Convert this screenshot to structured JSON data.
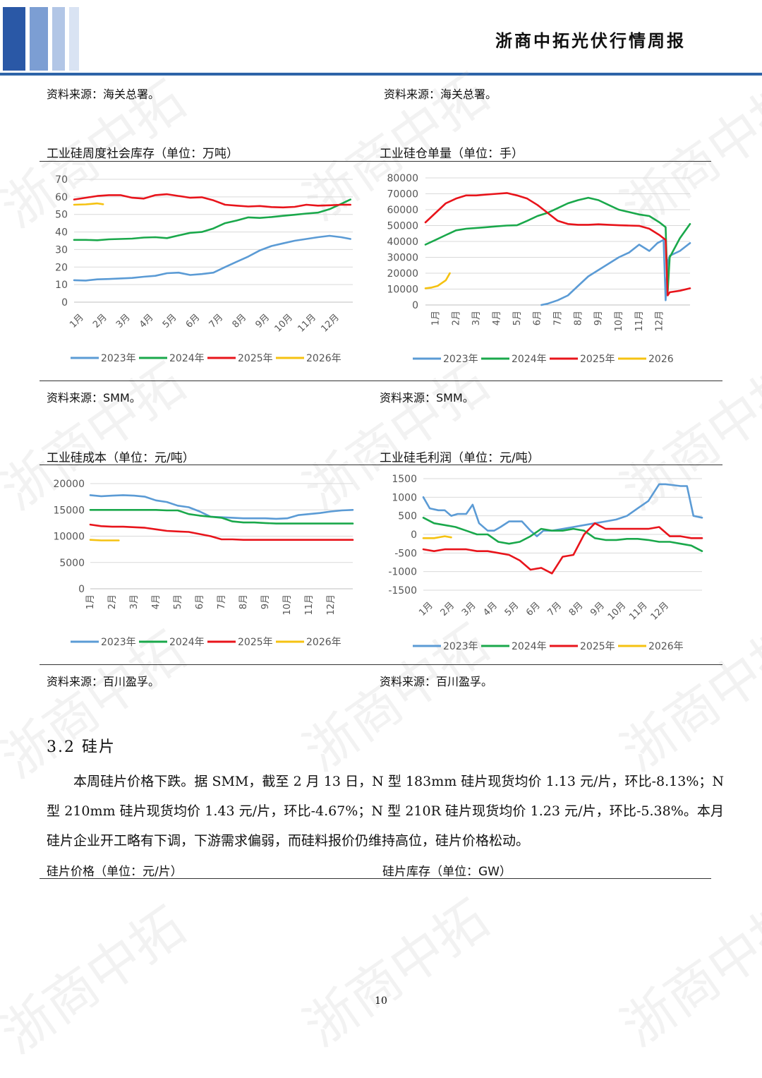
{
  "header": {
    "title": "浙商中拓光伏行情周报",
    "bar_colors": [
      "#2a58a6",
      "#7c9ed3",
      "#b2c6e6",
      "#d9e3f3"
    ]
  },
  "top_sources": {
    "left": "资料来源：海关总署。",
    "right": "资料来源：海关总署。"
  },
  "watermark": "浙商中拓",
  "series_colors": {
    "2023": "#5b9bd5",
    "2024": "#1aa84b",
    "2025": "#e8141b",
    "2026": "#f5c211"
  },
  "chart_data": [
    {
      "id": "inventory",
      "type": "line",
      "title": "工业硅周度社会库存（单位：万吨）",
      "ylim": [
        0,
        70
      ],
      "yticks": [
        "70",
        "60",
        "50",
        "40",
        "30",
        "20",
        "10",
        "0"
      ],
      "categories": [
        "1月",
        "2月",
        "3月",
        "4月",
        "5月",
        "6月",
        "7月",
        "8月",
        "9月",
        "10月",
        "11月",
        "12月"
      ],
      "legend": [
        "2023年",
        "2024年",
        "2025年",
        "2026年"
      ],
      "source": "资料来源：SMM。",
      "series": [
        {
          "name": "2023年",
          "key": "2023",
          "x": [
            0,
            0.5,
            1,
            1.5,
            2,
            2.5,
            3,
            3.5,
            4,
            4.5,
            5,
            5.5,
            6,
            6.5,
            7,
            7.5,
            8,
            8.5,
            9,
            9.5,
            10,
            10.5,
            11,
            11.5,
            11.9
          ],
          "values": [
            12.5,
            12.3,
            13,
            13.2,
            13.5,
            13.8,
            14.5,
            15,
            16.5,
            16.8,
            15.5,
            16,
            16.8,
            20,
            23,
            26,
            29.5,
            32,
            33.5,
            35,
            36,
            37,
            37.8,
            37,
            36
          ]
        },
        {
          "name": "2024年",
          "key": "2024",
          "x": [
            0,
            0.5,
            1,
            1.5,
            2,
            2.5,
            3,
            3.5,
            4,
            4.5,
            5,
            5.5,
            6,
            6.5,
            7,
            7.5,
            8,
            8.5,
            9,
            9.5,
            10,
            10.5,
            11,
            11.5,
            11.9
          ],
          "values": [
            35.5,
            35.5,
            35.3,
            35.8,
            36,
            36.2,
            36.8,
            37,
            36.5,
            38,
            39.5,
            40,
            42,
            45,
            46.5,
            48.3,
            48,
            48.5,
            49.2,
            49.8,
            50.5,
            51,
            53,
            56,
            58.5
          ]
        },
        {
          "name": "2025年",
          "key": "2025",
          "x": [
            0,
            0.5,
            1,
            1.5,
            2,
            2.5,
            3,
            3.5,
            4,
            4.5,
            5,
            5.5,
            6,
            6.5,
            7,
            7.5,
            8,
            8.5,
            9,
            9.5,
            10,
            10.5,
            11,
            11.5,
            11.9
          ],
          "values": [
            58.5,
            59.5,
            60.5,
            61,
            61,
            59.5,
            59,
            61,
            61.5,
            60.5,
            59.5,
            59.8,
            58,
            55.5,
            55,
            54.5,
            54.8,
            54.2,
            54,
            54.3,
            55.5,
            55,
            55.2,
            55.5,
            55.5
          ]
        },
        {
          "name": "2026年",
          "key": "2026",
          "x": [
            0,
            0.5,
            1,
            1.25
          ],
          "values": [
            55.5,
            55.7,
            56.3,
            55.8
          ]
        }
      ]
    },
    {
      "id": "warehouse",
      "type": "line",
      "title": "工业硅仓单量（单位：手）",
      "ylim": [
        0,
        80000
      ],
      "yticks": [
        "80000",
        "70000",
        "60000",
        "50000",
        "40000",
        "30000",
        "20000",
        "10000",
        "0"
      ],
      "categories": [
        "1月",
        "2月",
        "3月",
        "4月",
        "5月",
        "6月",
        "7月",
        "8月",
        "9月",
        "10月",
        "11月",
        "12月"
      ],
      "legend": [
        "2023年",
        "2024年",
        "2025年",
        "2026"
      ],
      "source": "资料来源：SMM。",
      "series": [
        {
          "name": "2023年",
          "key": "2023",
          "x": [
            5.7,
            6,
            6.5,
            7,
            7.5,
            8,
            8.5,
            9,
            9.5,
            10,
            10.5,
            11,
            11.4,
            11.7,
            11.8,
            11.9,
            12,
            12.5,
            13
          ],
          "values": [
            0,
            800,
            3000,
            6000,
            12000,
            18000,
            22000,
            26000,
            30000,
            33000,
            38000,
            34000,
            39000,
            41000,
            3000,
            27000,
            31000,
            34000,
            39000
          ]
        },
        {
          "name": "2024年",
          "key": "2024",
          "x": [
            0,
            0.5,
            1,
            1.5,
            2,
            2.5,
            3,
            3.5,
            4,
            4.5,
            5,
            5.5,
            6,
            6.5,
            7,
            7.5,
            8,
            8.5,
            9,
            9.5,
            10,
            10.5,
            11,
            11.5,
            11.8,
            11.9,
            12,
            12.5,
            13
          ],
          "values": [
            38000,
            41000,
            44000,
            47000,
            48000,
            48500,
            49000,
            49500,
            50000,
            50200,
            53000,
            56000,
            58000,
            61000,
            64000,
            66000,
            67500,
            66000,
            63000,
            60000,
            58500,
            57000,
            56000,
            52000,
            49000,
            8000,
            30000,
            42000,
            51000
          ]
        },
        {
          "name": "2025年",
          "key": "2025",
          "x": [
            0,
            0.5,
            1,
            1.5,
            2,
            2.5,
            3,
            3.5,
            4,
            4.5,
            5,
            5.5,
            6,
            6.5,
            7,
            7.5,
            8,
            8.5,
            9,
            9.5,
            10,
            10.5,
            11,
            11.5,
            11.8,
            11.9,
            12,
            12.5,
            13
          ],
          "values": [
            52000,
            58000,
            64000,
            67000,
            69000,
            69000,
            69500,
            70000,
            70500,
            69000,
            67000,
            63000,
            58000,
            53000,
            51000,
            50500,
            50500,
            50800,
            50500,
            50200,
            50000,
            49800,
            48000,
            44000,
            41000,
            6000,
            8000,
            9000,
            10500
          ]
        },
        {
          "name": "2026",
          "key": "2026",
          "x": [
            0,
            0.3,
            0.6,
            1,
            1.2
          ],
          "values": [
            10500,
            11000,
            12000,
            15500,
            20000
          ]
        }
      ]
    },
    {
      "id": "cost",
      "type": "line",
      "title": "工业硅成本（单位：元/吨）",
      "ylim": [
        0,
        20000
      ],
      "yticks": [
        "20000",
        "15000",
        "10000",
        "5000",
        "0"
      ],
      "categories": [
        "1月",
        "2月",
        "3月",
        "4月",
        "5月",
        "6月",
        "7月",
        "8月",
        "9月",
        "10月",
        "11月",
        "12月"
      ],
      "legend": [
        "2023年",
        "2024年",
        "2025年",
        "2026年"
      ],
      "source": "资料来源：百川盈孚。",
      "series": [
        {
          "name": "2023年",
          "key": "2023",
          "x": [
            0,
            0.5,
            1,
            1.5,
            2,
            2.5,
            3,
            3.5,
            4,
            4.5,
            5,
            5.5,
            6,
            6.5,
            7,
            7.5,
            8,
            8.5,
            9,
            9.5,
            10,
            10.5,
            11,
            11.5,
            12
          ],
          "values": [
            17800,
            17600,
            17700,
            17800,
            17700,
            17500,
            16800,
            16500,
            15800,
            15500,
            14700,
            13700,
            13600,
            13500,
            13400,
            13400,
            13400,
            13300,
            13400,
            14000,
            14200,
            14400,
            14700,
            14900,
            15000
          ]
        },
        {
          "name": "2024年",
          "key": "2024",
          "x": [
            0,
            0.5,
            1,
            1.5,
            2,
            2.5,
            3,
            3.5,
            4,
            4.5,
            5,
            5.5,
            6,
            6.5,
            7,
            7.5,
            8,
            8.5,
            9,
            9.5,
            10,
            10.5,
            11,
            11.5,
            12
          ],
          "values": [
            15000,
            15000,
            15000,
            15000,
            15000,
            15000,
            15000,
            14900,
            14900,
            14200,
            13900,
            13700,
            13500,
            12800,
            12600,
            12600,
            12500,
            12400,
            12400,
            12400,
            12400,
            12400,
            12400,
            12400,
            12400
          ]
        },
        {
          "name": "2025年",
          "key": "2025",
          "x": [
            0,
            0.5,
            1,
            1.5,
            2,
            2.5,
            3,
            3.5,
            4,
            4.5,
            5,
            5.5,
            6,
            6.5,
            7,
            7.5,
            8,
            8.5,
            9,
            9.5,
            10,
            10.5,
            11,
            11.5,
            12
          ],
          "values": [
            12200,
            11900,
            11800,
            11800,
            11700,
            11600,
            11300,
            11000,
            10900,
            10800,
            10400,
            10000,
            9400,
            9400,
            9300,
            9300,
            9300,
            9300,
            9300,
            9300,
            9300,
            9300,
            9300,
            9300,
            9300
          ]
        },
        {
          "name": "2026年",
          "key": "2026",
          "x": [
            0,
            0.5,
            1,
            1.3
          ],
          "values": [
            9300,
            9200,
            9200,
            9200
          ]
        }
      ]
    },
    {
      "id": "profit",
      "type": "line",
      "title": "工业硅毛利润（单位：元/吨）",
      "ylim": [
        -1500,
        1500
      ],
      "yticks": [
        "1500",
        "1000",
        "500",
        "0",
        "-500",
        "-1000",
        "-1500"
      ],
      "categories": [
        "1月",
        "2月",
        "3月",
        "4月",
        "5月",
        "6月",
        "7月",
        "8月",
        "9月",
        "10月",
        "11月",
        "12月"
      ],
      "legend": [
        "2023年",
        "2024年",
        "2025年",
        "2026年"
      ],
      "source": "资料来源：百川盈孚。",
      "series": [
        {
          "name": "2023年",
          "key": "2023",
          "x": [
            0,
            0.3,
            0.7,
            1,
            1.3,
            1.6,
            2,
            2.3,
            2.6,
            3,
            3.3,
            3.6,
            4,
            4.3,
            4.6,
            5,
            5.3,
            5.6,
            6,
            6.5,
            7,
            7.5,
            8,
            8.5,
            9,
            9.5,
            10,
            10.5,
            11,
            11.3,
            11.6,
            12,
            12.3,
            12.6,
            13
          ],
          "values": [
            1000,
            700,
            650,
            650,
            500,
            550,
            550,
            800,
            300,
            100,
            100,
            200,
            350,
            350,
            350,
            100,
            -50,
            100,
            100,
            150,
            200,
            250,
            300,
            350,
            400,
            500,
            700,
            900,
            1350,
            1350,
            1330,
            1300,
            1300,
            500,
            450
          ]
        },
        {
          "name": "2024年",
          "key": "2024",
          "x": [
            0,
            0.5,
            1,
            1.5,
            2,
            2.5,
            3,
            3.5,
            4,
            4.5,
            5,
            5.5,
            6,
            6.5,
            7,
            7.5,
            8,
            8.5,
            9,
            9.5,
            10,
            10.5,
            11,
            11.5,
            12,
            12.5,
            13
          ],
          "values": [
            450,
            300,
            250,
            200,
            100,
            0,
            0,
            -200,
            -250,
            -200,
            -50,
            150,
            100,
            100,
            150,
            100,
            -100,
            -150,
            -150,
            -120,
            -120,
            -150,
            -200,
            -200,
            -250,
            -300,
            -450
          ]
        },
        {
          "name": "2025年",
          "key": "2025",
          "x": [
            0,
            0.5,
            1,
            1.5,
            2,
            2.5,
            3,
            3.5,
            4,
            4.5,
            5,
            5.5,
            6,
            6.5,
            7,
            7.5,
            8,
            8.5,
            9,
            9.5,
            10,
            10.5,
            11,
            11.5,
            12,
            12.5,
            13
          ],
          "values": [
            -400,
            -450,
            -400,
            -400,
            -400,
            -450,
            -450,
            -500,
            -550,
            -700,
            -950,
            -900,
            -1050,
            -600,
            -550,
            0,
            300,
            150,
            150,
            150,
            150,
            150,
            200,
            -50,
            -50,
            -100,
            -100
          ]
        },
        {
          "name": "2026年",
          "key": "2026",
          "x": [
            0,
            0.5,
            1,
            1.3
          ],
          "values": [
            -100,
            -100,
            -50,
            -80
          ]
        }
      ]
    }
  ],
  "section": {
    "heading": "3.2  硅片",
    "paragraph": "本周硅片价格下跌。据 SMM，截至 2 月 13 日，N 型 183mm 硅片现货均价 1.13 元/片，环比-8.13%；N 型 210mm 硅片现货均价 1.43 元/片，环比-4.67%；N 型 210R 硅片现货均价 1.23 元/片，环比-5.38%。本月硅片企业开工略有下调，下游需求偏弱，而硅料报价仍维持高位，硅片价格松动。"
  },
  "bottom_titles": {
    "left": "硅片价格（单位：元/片）",
    "right": "硅片库存（单位：GW）"
  },
  "page_number": "10"
}
